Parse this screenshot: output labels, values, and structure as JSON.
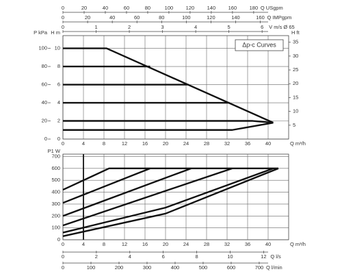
{
  "chart_data": [
    {
      "type": "line",
      "annotation": "Δp-c Curves",
      "y_label": "H m",
      "x_label": "Q m³/h",
      "xlim": [
        0,
        44
      ],
      "xticks": [
        0,
        4,
        8,
        12,
        16,
        20,
        24,
        28,
        32,
        36,
        40
      ],
      "ylim": [
        0,
        11.4
      ],
      "yticks": [
        0,
        2,
        4,
        6,
        8,
        10
      ],
      "grid": true,
      "y2label": "H ft",
      "y2lim": [
        0,
        37.4
      ],
      "y2ticks": [
        5,
        10,
        15,
        20,
        25,
        30,
        35
      ],
      "extra_axes": [
        {
          "side": "left",
          "label": "P kPa",
          "lim": [
            0,
            114
          ],
          "ticks": [
            0,
            20,
            40,
            60,
            80,
            100
          ]
        },
        {
          "side": "top",
          "label": "Q USgpm",
          "lim": [
            0,
            213
          ],
          "ticks": [
            0,
            20,
            40,
            60,
            80,
            100,
            120,
            140,
            160,
            180
          ]
        },
        {
          "side": "top",
          "label": "Q IMPgpm",
          "lim": [
            0,
            183
          ],
          "ticks": [
            0,
            20,
            40,
            60,
            80,
            100,
            120,
            140,
            160
          ]
        },
        {
          "side": "top",
          "label": "V m/s Ø 65",
          "lim": [
            0,
            6.8
          ],
          "ticks": [
            0,
            1,
            2,
            3,
            4,
            5,
            6
          ]
        }
      ],
      "series": [
        {
          "color": "#111111",
          "x": [
            0,
            8.5,
            41
          ],
          "values": [
            10,
            10,
            1.8
          ]
        },
        {
          "color": "#111111",
          "x": [
            0,
            17
          ],
          "values": [
            8,
            8
          ]
        },
        {
          "color": "#111111",
          "x": [
            0,
            24.5
          ],
          "values": [
            6,
            6
          ]
        },
        {
          "color": "#111111",
          "x": [
            0,
            32.5
          ],
          "values": [
            4,
            4
          ]
        },
        {
          "color": "#111111",
          "x": [
            0,
            37,
            41
          ],
          "values": [
            2,
            2,
            1.8
          ]
        },
        {
          "color": "#111111",
          "x": [
            0,
            33,
            41
          ],
          "values": [
            1,
            1,
            1.8
          ]
        }
      ]
    },
    {
      "type": "line",
      "y_label": "P1 W",
      "x_label": "Q m³/h",
      "xlim": [
        0,
        44
      ],
      "xticks": [
        0,
        4,
        8,
        12,
        16,
        20,
        24,
        28,
        32,
        36,
        40
      ],
      "ylim": [
        0,
        720
      ],
      "yticks": [
        0,
        100,
        200,
        300,
        400,
        500,
        600,
        700
      ],
      "grid": true,
      "reference_line_x": 4,
      "extra_axes": [
        {
          "side": "bottom",
          "label": "Q l/s",
          "lim": [
            0,
            13.5
          ],
          "ticks": [
            0,
            2,
            4,
            6,
            8,
            10,
            12
          ]
        },
        {
          "side": "bottom",
          "label": "Q l/min",
          "lim": [
            0,
            805
          ],
          "ticks": [
            0,
            100,
            200,
            300,
            400,
            500,
            600,
            700
          ]
        }
      ],
      "series": [
        {
          "color": "#111111",
          "x": [
            0,
            9,
            42
          ],
          "values": [
            420,
            600,
            600
          ]
        },
        {
          "color": "#111111",
          "x": [
            0,
            17
          ],
          "values": [
            310,
            600
          ]
        },
        {
          "color": "#111111",
          "x": [
            0,
            25
          ],
          "values": [
            200,
            600
          ]
        },
        {
          "color": "#111111",
          "x": [
            0,
            33
          ],
          "values": [
            120,
            600
          ]
        },
        {
          "color": "#111111",
          "x": [
            0,
            20,
            41
          ],
          "values": [
            60,
            270,
            600
          ]
        },
        {
          "color": "#111111",
          "x": [
            0,
            20,
            42
          ],
          "values": [
            30,
            220,
            600
          ]
        }
      ]
    }
  ]
}
